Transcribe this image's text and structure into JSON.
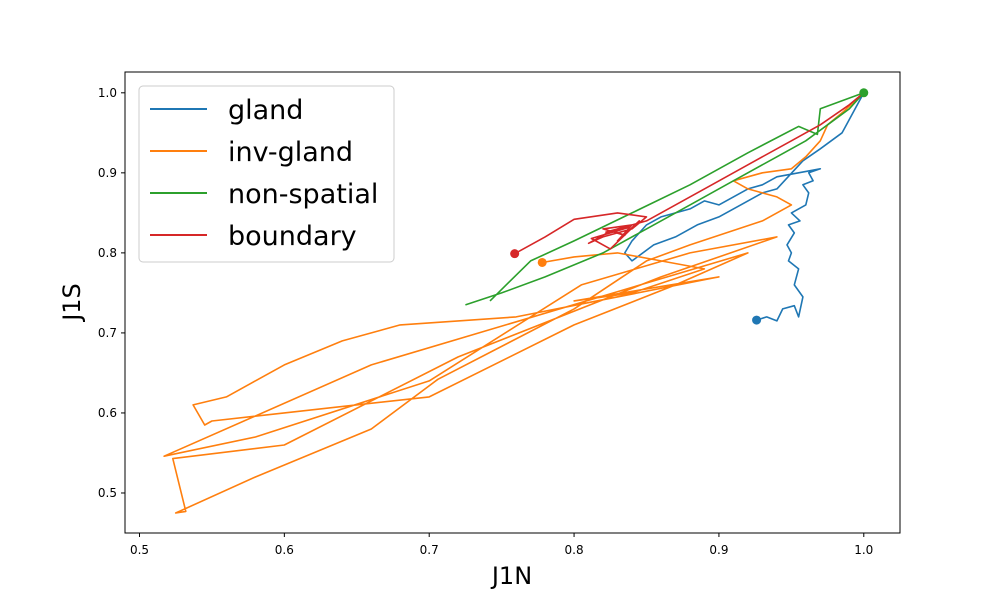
{
  "chart_data": {
    "type": "line",
    "title": "",
    "xlabel": "J1N",
    "ylabel": "J1S",
    "xlim": [
      0.49,
      1.025
    ],
    "ylim": [
      0.45,
      1.026
    ],
    "x_ticks": [
      0.5,
      0.6,
      0.7,
      0.8,
      0.9,
      1.0
    ],
    "x_tick_labels": [
      "0.5",
      "0.6",
      "0.7",
      "0.8",
      "0.9",
      "1.0"
    ],
    "y_ticks": [
      0.5,
      0.6,
      0.7,
      0.8,
      0.9,
      1.0
    ],
    "y_tick_labels": [
      "0.5",
      "0.6",
      "0.7",
      "0.8",
      "0.9",
      "1.0"
    ],
    "grid": false,
    "legend_position": "upper-left",
    "series": [
      {
        "name": "gland",
        "color": "#1f77b4",
        "start_marker": [
          0.926,
          0.716
        ],
        "points": [
          [
            0.926,
            0.716
          ],
          [
            0.933,
            0.72
          ],
          [
            0.94,
            0.715
          ],
          [
            0.944,
            0.73
          ],
          [
            0.952,
            0.734
          ],
          [
            0.955,
            0.72
          ],
          [
            0.958,
            0.745
          ],
          [
            0.952,
            0.76
          ],
          [
            0.955,
            0.78
          ],
          [
            0.948,
            0.79
          ],
          [
            0.95,
            0.8
          ],
          [
            0.947,
            0.81
          ],
          [
            0.952,
            0.825
          ],
          [
            0.948,
            0.835
          ],
          [
            0.956,
            0.84
          ],
          [
            0.95,
            0.85
          ],
          [
            0.96,
            0.86
          ],
          [
            0.962,
            0.875
          ],
          [
            0.958,
            0.885
          ],
          [
            0.965,
            0.89
          ],
          [
            0.962,
            0.9
          ],
          [
            0.97,
            0.905
          ],
          [
            0.955,
            0.9
          ],
          [
            0.94,
            0.895
          ],
          [
            0.93,
            0.885
          ],
          [
            0.92,
            0.88
          ],
          [
            0.91,
            0.87
          ],
          [
            0.9,
            0.86
          ],
          [
            0.89,
            0.865
          ],
          [
            0.88,
            0.855
          ],
          [
            0.87,
            0.85
          ],
          [
            0.86,
            0.845
          ],
          [
            0.85,
            0.835
          ],
          [
            0.845,
            0.825
          ],
          [
            0.84,
            0.815
          ],
          [
            0.835,
            0.8
          ],
          [
            0.84,
            0.79
          ],
          [
            0.855,
            0.81
          ],
          [
            0.87,
            0.82
          ],
          [
            0.885,
            0.835
          ],
          [
            0.9,
            0.845
          ],
          [
            0.915,
            0.86
          ],
          [
            0.93,
            0.875
          ],
          [
            0.94,
            0.88
          ],
          [
            0.958,
            0.915
          ],
          [
            0.97,
            0.93
          ],
          [
            0.985,
            0.95
          ],
          [
            1.0,
            1.0
          ]
        ]
      },
      {
        "name": "inv-gland",
        "color": "#ff7f0e",
        "start_marker": [
          0.778,
          0.788
        ],
        "points": [
          [
            0.778,
            0.788
          ],
          [
            0.8,
            0.795
          ],
          [
            0.83,
            0.8
          ],
          [
            0.86,
            0.79
          ],
          [
            0.89,
            0.78
          ],
          [
            0.84,
            0.75
          ],
          [
            0.8,
            0.74
          ],
          [
            0.9,
            0.77
          ],
          [
            0.76,
            0.72
          ],
          [
            0.68,
            0.71
          ],
          [
            0.64,
            0.69
          ],
          [
            0.6,
            0.66
          ],
          [
            0.56,
            0.62
          ],
          [
            0.537,
            0.61
          ],
          [
            0.545,
            0.585
          ],
          [
            0.55,
            0.59
          ],
          [
            0.6,
            0.6
          ],
          [
            0.7,
            0.62
          ],
          [
            0.8,
            0.71
          ],
          [
            0.87,
            0.76
          ],
          [
            0.92,
            0.8
          ],
          [
            0.66,
            0.66
          ],
          [
            0.517,
            0.546
          ],
          [
            0.58,
            0.57
          ],
          [
            0.7,
            0.64
          ],
          [
            0.805,
            0.76
          ],
          [
            0.88,
            0.8
          ],
          [
            0.94,
            0.82
          ],
          [
            0.86,
            0.77
          ],
          [
            0.72,
            0.67
          ],
          [
            0.6,
            0.56
          ],
          [
            0.523,
            0.543
          ],
          [
            0.532,
            0.477
          ],
          [
            0.525,
            0.475
          ],
          [
            0.58,
            0.52
          ],
          [
            0.66,
            0.58
          ],
          [
            0.706,
            0.642
          ],
          [
            0.8,
            0.73
          ],
          [
            0.85,
            0.79
          ],
          [
            0.88,
            0.81
          ],
          [
            0.93,
            0.84
          ],
          [
            0.95,
            0.86
          ],
          [
            0.94,
            0.87
          ],
          [
            0.92,
            0.88
          ],
          [
            0.91,
            0.89
          ],
          [
            0.93,
            0.9
          ],
          [
            0.95,
            0.905
          ],
          [
            0.96,
            0.92
          ],
          [
            0.97,
            0.94
          ],
          [
            0.975,
            0.96
          ],
          [
            0.985,
            0.975
          ],
          [
            1.0,
            1.0
          ]
        ]
      },
      {
        "name": "non-spatial",
        "color": "#2ca02c",
        "start_marker": [
          1.0,
          1.0
        ],
        "points": [
          [
            0.725,
            0.735
          ],
          [
            0.75,
            0.75
          ],
          [
            0.78,
            0.77
          ],
          [
            0.82,
            0.8
          ],
          [
            0.85,
            0.83
          ],
          [
            0.88,
            0.86
          ],
          [
            0.91,
            0.89
          ],
          [
            0.94,
            0.92
          ],
          [
            0.96,
            0.94
          ],
          [
            0.975,
            0.96
          ],
          [
            0.99,
            0.98
          ],
          [
            1.0,
            1.0
          ],
          [
            0.97,
            0.98
          ],
          [
            0.968,
            0.948
          ],
          [
            0.955,
            0.958
          ],
          [
            0.92,
            0.925
          ],
          [
            0.88,
            0.885
          ],
          [
            0.84,
            0.85
          ],
          [
            0.8,
            0.815
          ],
          [
            0.77,
            0.79
          ],
          [
            0.742,
            0.74
          ]
        ]
      },
      {
        "name": "boundary",
        "color": "#d62728",
        "start_marker": [
          0.759,
          0.799
        ],
        "points": [
          [
            0.759,
            0.799
          ],
          [
            0.78,
            0.82
          ],
          [
            0.8,
            0.842
          ],
          [
            0.83,
            0.85
          ],
          [
            0.85,
            0.845
          ],
          [
            0.84,
            0.83
          ],
          [
            0.82,
            0.82
          ],
          [
            0.81,
            0.812
          ],
          [
            0.826,
            0.828
          ],
          [
            0.835,
            0.822
          ],
          [
            0.82,
            0.83
          ],
          [
            0.84,
            0.835
          ],
          [
            0.83,
            0.815
          ],
          [
            0.845,
            0.84
          ],
          [
            0.825,
            0.805
          ],
          [
            0.812,
            0.818
          ],
          [
            0.838,
            0.832
          ],
          [
            0.822,
            0.826
          ],
          [
            0.85,
            0.84
          ],
          [
            0.86,
            0.85
          ],
          [
            0.89,
            0.88
          ],
          [
            0.92,
            0.91
          ],
          [
            0.95,
            0.94
          ],
          [
            0.97,
            0.96
          ],
          [
            0.99,
            0.985
          ],
          [
            1.0,
            1.0
          ]
        ]
      }
    ]
  }
}
